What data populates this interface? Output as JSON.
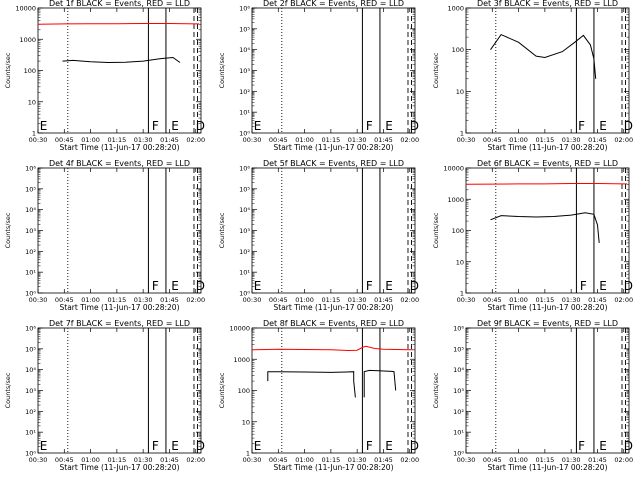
{
  "chart_data": [
    {
      "type": "line",
      "det": 1,
      "title": "Det 1f BLACK = Events, RED = LLD",
      "xlabel": "Start Time (11-Jun-17 00:28:20)",
      "ylabel": "Counts/sec",
      "xlim": [
        "00:30",
        "02:03"
      ],
      "xticks": [
        "00:30",
        "00:45",
        "01:00",
        "01:15",
        "01:30",
        "01:45",
        "02:00"
      ],
      "yscale": "log",
      "ylim": [
        1,
        10000
      ],
      "yticks": [
        "1",
        "10",
        "100",
        "1000",
        "10000"
      ],
      "dotted_x": "00:47",
      "solid_x": [
        "01:33",
        "01:43"
      ],
      "dashed_x": [
        "01:59",
        "02:01"
      ],
      "markers": [
        {
          "text": "E",
          "x": "00:31"
        },
        {
          "text": "F",
          "x": "01:35"
        },
        {
          "text": "E",
          "x": "01:46"
        },
        {
          "text": "D",
          "x": "02:00"
        }
      ],
      "series": [
        {
          "color": "#ff0000",
          "x": [
            "00:30",
            "00:45",
            "01:00",
            "01:15",
            "01:30",
            "01:45",
            "02:00",
            "02:02"
          ],
          "y": [
            3000,
            3100,
            3150,
            3150,
            3200,
            3200,
            3100,
            3100
          ]
        },
        {
          "color": "#000000",
          "x": [
            "00:44",
            "00:50",
            "01:00",
            "01:10",
            "01:20",
            "01:30",
            "01:40",
            "01:47",
            "01:51"
          ],
          "y": [
            200,
            210,
            190,
            180,
            185,
            200,
            240,
            260,
            180
          ]
        }
      ]
    },
    {
      "type": "line",
      "det": 2,
      "title": "Det 2f BLACK = Events, RED = LLD",
      "xlabel": "Start Time (11-Jun-17 00:28:20)",
      "ylabel": "Counts/sec",
      "xlim": [
        "00:30",
        "02:03"
      ],
      "xticks": [
        "00:30",
        "00:45",
        "01:00",
        "01:15",
        "01:30",
        "01:45",
        "02:00"
      ],
      "yscale": "log",
      "ylim": [
        1,
        1000000
      ],
      "yticks": [
        "10⁰",
        "10¹",
        "10²",
        "10³",
        "10⁴",
        "10⁵",
        "10⁶"
      ],
      "dotted_x": "00:47",
      "solid_x": [
        "01:33",
        "01:43"
      ],
      "dashed_x": [
        "01:59",
        "02:01"
      ],
      "markers": [
        {
          "text": "E",
          "x": "00:31"
        },
        {
          "text": "F",
          "x": "01:35"
        },
        {
          "text": "E",
          "x": "01:46"
        },
        {
          "text": "D",
          "x": "02:00"
        }
      ],
      "series": []
    },
    {
      "type": "line",
      "det": 3,
      "title": "Det 3f BLACK = Events, RED = LLD",
      "xlabel": "Start Time (11-Jun-17 00:28:20)",
      "ylabel": "Counts/sec",
      "xlim": [
        "00:30",
        "02:03"
      ],
      "xticks": [
        "00:30",
        "00:45",
        "01:00",
        "01:15",
        "01:30",
        "01:45",
        "02:00"
      ],
      "yscale": "log",
      "ylim": [
        1,
        1000
      ],
      "yticks": [
        "1",
        "10",
        "100",
        "1000"
      ],
      "dotted_x": "00:47",
      "solid_x": [
        "01:33",
        "01:43"
      ],
      "dashed_x": [
        "01:59",
        "02:01"
      ],
      "markers": [
        {
          "text": "F",
          "x": "01:34"
        },
        {
          "text": "E",
          "x": "01:46"
        },
        {
          "text": "D",
          "x": "02:00"
        }
      ],
      "series": [
        {
          "color": "#000000",
          "x": [
            "00:44",
            "00:50",
            "01:00",
            "01:10",
            "01:15",
            "01:25",
            "01:32",
            "01:37",
            "01:41",
            "01:43",
            "01:44"
          ],
          "y": [
            100,
            230,
            150,
            70,
            65,
            90,
            150,
            220,
            130,
            60,
            20
          ]
        }
      ]
    },
    {
      "type": "line",
      "det": 4,
      "title": "Det 4f BLACK = Events, RED = LLD",
      "xlabel": "Start Time (11-Jun-17 00:28:20)",
      "ylabel": "Counts/sec",
      "xlim": [
        "00:30",
        "02:03"
      ],
      "xticks": [
        "00:30",
        "00:45",
        "01:00",
        "01:15",
        "01:30",
        "01:45",
        "02:00"
      ],
      "yscale": "log",
      "ylim": [
        1,
        1000000
      ],
      "yticks": [
        "10⁰",
        "10¹",
        "10²",
        "10³",
        "10⁴",
        "10⁵",
        "10⁶"
      ],
      "dotted_x": "00:47",
      "solid_x": [
        "01:33",
        "01:43"
      ],
      "dashed_x": [
        "01:59",
        "02:01"
      ],
      "markers": [
        {
          "text": "F",
          "x": "01:35"
        },
        {
          "text": "E",
          "x": "01:46"
        },
        {
          "text": "D",
          "x": "02:00"
        }
      ],
      "series": []
    },
    {
      "type": "line",
      "det": 5,
      "title": "Det 5f BLACK = Events, RED = LLD",
      "xlabel": "Start Time (11-Jun-17 00:28:20)",
      "ylabel": "Counts/sec",
      "xlim": [
        "00:30",
        "02:03"
      ],
      "xticks": [
        "00:30",
        "00:45",
        "01:00",
        "01:15",
        "01:30",
        "01:45",
        "02:00"
      ],
      "yscale": "log",
      "ylim": [
        1,
        1000000
      ],
      "yticks": [
        "10⁰",
        "10¹",
        "10²",
        "10³",
        "10⁴",
        "10⁵",
        "10⁶"
      ],
      "dotted_x": "00:47",
      "solid_x": [
        "01:33",
        "01:43"
      ],
      "dashed_x": [
        "01:59",
        "02:01"
      ],
      "markers": [
        {
          "text": "E",
          "x": "00:31"
        },
        {
          "text": "F",
          "x": "01:35"
        },
        {
          "text": "E",
          "x": "01:46"
        },
        {
          "text": "D",
          "x": "02:00"
        }
      ],
      "series": []
    },
    {
      "type": "line",
      "det": 6,
      "title": "Det 6f BLACK = Events, RED = LLD",
      "xlabel": "Start Time (11-Jun-17 00:28:20)",
      "ylabel": "Counts/sec",
      "xlim": [
        "00:30",
        "02:03"
      ],
      "xticks": [
        "00:30",
        "00:45",
        "01:00",
        "01:15",
        "01:30",
        "01:45",
        "02:00"
      ],
      "yscale": "log",
      "ylim": [
        1,
        10000
      ],
      "yticks": [
        "1",
        "10",
        "100",
        "1000",
        "10000"
      ],
      "dotted_x": "00:47",
      "solid_x": [
        "01:33",
        "01:43"
      ],
      "dashed_x": [
        "01:59",
        "02:01"
      ],
      "markers": [
        {
          "text": "F",
          "x": "01:35"
        },
        {
          "text": "E",
          "x": "01:46"
        },
        {
          "text": "D",
          "x": "02:00"
        }
      ],
      "series": [
        {
          "color": "#ff0000",
          "x": [
            "00:30",
            "00:45",
            "01:00",
            "01:15",
            "01:30",
            "01:45",
            "02:00",
            "02:02"
          ],
          "y": [
            3000,
            3050,
            3100,
            3100,
            3200,
            3200,
            3100,
            3100
          ]
        },
        {
          "color": "#000000",
          "x": [
            "00:44",
            "00:50",
            "01:00",
            "01:10",
            "01:20",
            "01:30",
            "01:38",
            "01:43",
            "01:45",
            "01:46"
          ],
          "y": [
            220,
            300,
            280,
            270,
            280,
            310,
            370,
            330,
            150,
            40
          ]
        }
      ]
    },
    {
      "type": "line",
      "det": 7,
      "title": "Det 7f BLACK = Events, RED = LLD",
      "xlabel": "Start Time (11-Jun-17 00:28:20)",
      "ylabel": "Counts/sec",
      "xlim": [
        "00:30",
        "02:03"
      ],
      "xticks": [
        "00:30",
        "00:45",
        "01:00",
        "01:15",
        "01:30",
        "01:45",
        "02:00"
      ],
      "yscale": "log",
      "ylim": [
        1,
        1000000
      ],
      "yticks": [
        "10⁰",
        "10¹",
        "10²",
        "10³",
        "10⁴",
        "10⁵",
        "10⁶"
      ],
      "dotted_x": "00:47",
      "solid_x": [
        "01:33",
        "01:43"
      ],
      "dashed_x": [
        "01:59",
        "02:01"
      ],
      "markers": [
        {
          "text": "E",
          "x": "00:31"
        },
        {
          "text": "F",
          "x": "01:35"
        },
        {
          "text": "E",
          "x": "01:46"
        },
        {
          "text": "D",
          "x": "02:00"
        }
      ],
      "series": []
    },
    {
      "type": "line",
      "det": 8,
      "title": "Det 8f BLACK = Events, RED = LLD",
      "xlabel": "Start Time (11-Jun-17 00:28:20)",
      "ylabel": "Counts/sec",
      "xlim": [
        "00:30",
        "02:03"
      ],
      "xticks": [
        "00:30",
        "00:45",
        "01:00",
        "01:15",
        "01:30",
        "01:45",
        "02:00"
      ],
      "yscale": "log",
      "ylim": [
        1,
        10000
      ],
      "yticks": [
        "1",
        "10",
        "100",
        "1000",
        "10000"
      ],
      "dotted_x": "00:47",
      "solid_x": [
        "01:33",
        "01:43"
      ],
      "dashed_x": [
        "01:59",
        "02:01"
      ],
      "markers": [
        {
          "text": "E",
          "x": "00:31"
        },
        {
          "text": "F",
          "x": "01:35"
        },
        {
          "text": "E",
          "x": "01:46"
        },
        {
          "text": "D",
          "x": "02:00"
        }
      ],
      "series": [
        {
          "color": "#ff0000",
          "x": [
            "00:30",
            "00:45",
            "01:00",
            "01:15",
            "01:25",
            "01:30",
            "01:33",
            "01:35",
            "01:40",
            "01:45",
            "02:00",
            "02:02"
          ],
          "y": [
            2000,
            2100,
            2050,
            2000,
            1900,
            1950,
            2400,
            2600,
            2200,
            2100,
            2000,
            2000
          ]
        },
        {
          "color": "#000000",
          "x": [
            "00:39",
            "00:39",
            "00:45",
            "01:00",
            "01:15",
            "01:24",
            "01:28",
            "01:28",
            "01:29"
          ],
          "y": [
            200,
            400,
            400,
            390,
            380,
            390,
            400,
            200,
            60
          ]
        },
        {
          "color": "#000000",
          "x": [
            "01:34",
            "01:34",
            "01:37",
            "01:45",
            "01:50",
            "01:51",
            "01:52"
          ],
          "y": [
            60,
            400,
            440,
            420,
            410,
            400,
            100
          ]
        }
      ]
    },
    {
      "type": "line",
      "det": 9,
      "title": "Det 9f BLACK = Events, RED = LLD",
      "xlabel": "Start Time (11-Jun-17 00:28:20)",
      "ylabel": "Counts/sec",
      "xlim": [
        "00:30",
        "02:03"
      ],
      "xticks": [
        "00:30",
        "00:45",
        "01:00",
        "01:15",
        "01:30",
        "01:45",
        "02:00"
      ],
      "yscale": "log",
      "ylim": [
        1,
        1000000
      ],
      "yticks": [
        "10⁰",
        "10¹",
        "10²",
        "10³",
        "10⁴",
        "10⁵",
        "10⁶"
      ],
      "dotted_x": "00:47",
      "solid_x": [
        "01:33",
        "01:43"
      ],
      "dashed_x": [
        "01:59",
        "02:01"
      ],
      "markers": [
        {
          "text": "F",
          "x": "01:34"
        },
        {
          "text": "E",
          "x": "01:46"
        },
        {
          "text": "D",
          "x": "02:00"
        }
      ],
      "series": []
    }
  ]
}
